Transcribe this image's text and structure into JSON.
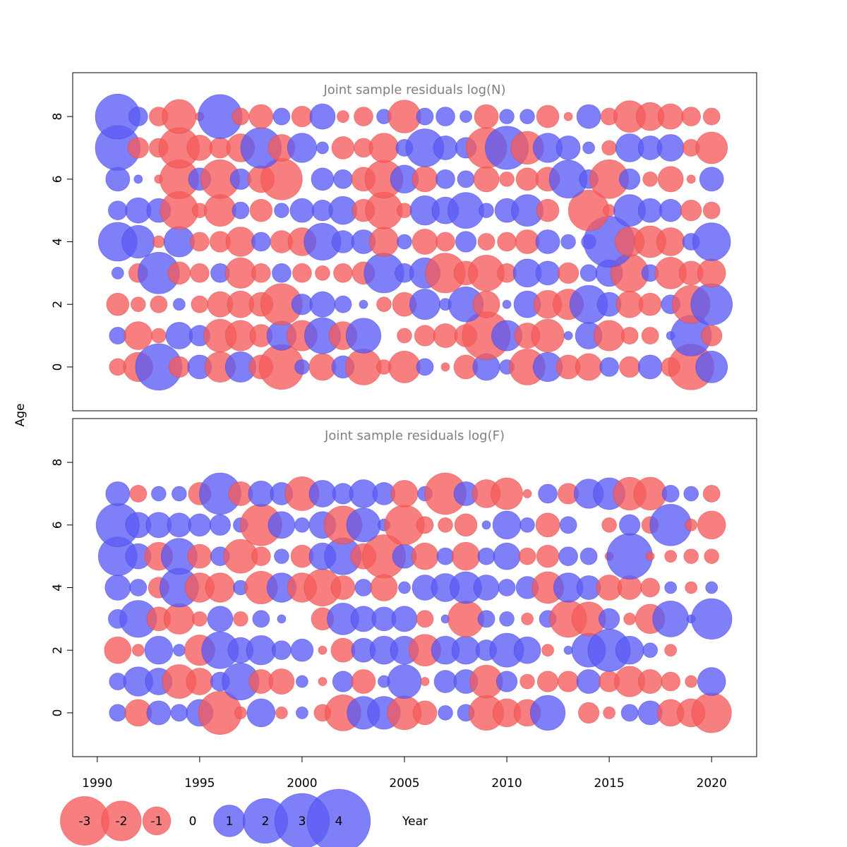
{
  "chart_data": {
    "type": "scatter",
    "subtype": "bubble",
    "xlabel": "Year",
    "ylabel": "Age",
    "xlim": [
      1988.8,
      2022.2
    ],
    "ylim": [
      -1.4,
      9.4
    ],
    "x_ticks": [
      1990,
      1995,
      2000,
      2005,
      2010,
      2015,
      2020
    ],
    "y_ticks": [
      0,
      2,
      4,
      6,
      8
    ],
    "colors": {
      "positive": "#5b5bf5",
      "negative": "#f55b5b"
    },
    "size_legend": [
      -3,
      -2,
      -1,
      0,
      1,
      2,
      3,
      4
    ],
    "years": [
      1991,
      1992,
      1993,
      1994,
      1995,
      1996,
      1997,
      1998,
      1999,
      2000,
      2001,
      2002,
      2003,
      2004,
      2005,
      2006,
      2007,
      2008,
      2009,
      2010,
      2011,
      2012,
      2013,
      2014,
      2015,
      2016,
      2017,
      2018,
      2019,
      2020
    ],
    "panels": [
      {
        "title": "Joint sample residuals log(N)",
        "ages": [
          0,
          1,
          2,
          3,
          4,
          5,
          6,
          7,
          8
        ],
        "residuals": [
          [
            -0.4,
            -1.2,
            3.0,
            -0.6,
            0.8,
            -1.3,
            1.3,
            -0.8,
            -2.8,
            0.3,
            -1.0,
            0.7,
            -1.8,
            -0.3,
            -1.4,
            0.4,
            -0.1,
            -0.8,
            1.0,
            0.3,
            -1.8,
            1.2,
            -0.8,
            -1.0,
            0.5,
            -0.6,
            0.8,
            -0.5,
            -2.9,
            1.4
          ],
          [
            0.4,
            -1.1,
            -0.3,
            1.0,
            0.6,
            -1.5,
            -1.3,
            -0.7,
            1.2,
            -1.3,
            1.8,
            -1.1,
            1.7,
            0.0,
            -0.3,
            -0.6,
            -0.8,
            -0.7,
            -3.2,
            1.3,
            -0.9,
            -1.5,
            0.1,
            1.0,
            -1.3,
            -0.4,
            -0.4,
            0.1,
            2.3,
            -0.6
          ],
          [
            -0.7,
            -0.3,
            -0.4,
            0.2,
            -0.4,
            -0.9,
            -1.0,
            -0.8,
            -2.4,
            0.6,
            0.9,
            0.4,
            0.1,
            -0.3,
            -0.8,
            1.3,
            0.2,
            1.7,
            -1.0,
            0.1,
            1.0,
            -1.1,
            -1.3,
            2.0,
            0.8,
            -1.0,
            -0.7,
            0.5,
            -2.0,
            2.4
          ],
          [
            0.2,
            -0.5,
            2.4,
            -0.7,
            -0.5,
            0.5,
            -1.3,
            -0.5,
            0.5,
            -0.5,
            -0.3,
            -0.5,
            -0.7,
            2.2,
            0.5,
            1.3,
            -2.2,
            -0.8,
            -1.8,
            -0.5,
            1.1,
            0.8,
            -0.6,
            0.4,
            1.0,
            -2.0,
            0.4,
            -1.4,
            -0.8,
            -1.1
          ],
          [
            2.1,
            1.5,
            -0.2,
            1.3,
            -0.5,
            -0.6,
            -1.2,
            0.5,
            -0.7,
            -1.1,
            1.9,
            0.7,
            0.8,
            -1.2,
            0.3,
            -0.9,
            -0.5,
            0.6,
            -0.4,
            -0.5,
            -0.8,
            0.8,
            0.3,
            0.3,
            3.6,
            -1.2,
            -1.4,
            -1.1,
            0.4,
            2.0
          ],
          [
            0.5,
            0.9,
            0.8,
            -2.0,
            -0.3,
            -1.4,
            0.4,
            -0.7,
            0.3,
            0.8,
            0.6,
            1.1,
            -0.7,
            -1.9,
            -0.3,
            1.2,
            1.0,
            1.8,
            0.3,
            0.8,
            1.4,
            -0.7,
            0.0,
            -2.3,
            -0.2,
            1.4,
            0.8,
            0.7,
            -0.6,
            -0.4
          ],
          [
            0.8,
            0.1,
            -0.1,
            -2.1,
            0.7,
            -2.1,
            0.6,
            -1.0,
            -2.4,
            0.0,
            0.7,
            0.5,
            -0.8,
            -2.0,
            1.1,
            -0.9,
            0.5,
            0.4,
            -0.9,
            -0.3,
            -0.7,
            -0.8,
            2.0,
            0.5,
            -2.1,
            0.6,
            -0.3,
            -0.9,
            -0.1,
            0.8
          ],
          [
            2.8,
            -0.6,
            -0.5,
            -2.3,
            -0.9,
            -0.6,
            -1.1,
            2.3,
            -1.0,
            1.2,
            0.2,
            -0.7,
            -0.5,
            -1.2,
            0.4,
            2.0,
            0.8,
            0.6,
            -2.3,
            2.6,
            -1.5,
            1.2,
            0.8,
            0.2,
            -0.3,
            1.1,
            0.8,
            1.0,
            -0.4,
            -1.4
          ],
          [
            2.8,
            0.5,
            -0.5,
            -1.6,
            -0.1,
            2.7,
            -0.4,
            -0.8,
            0.4,
            -0.6,
            0.9,
            -0.2,
            -0.5,
            0.3,
            -1.5,
            0.4,
            0.5,
            0.2,
            -0.8,
            0.3,
            0.3,
            -0.7,
            -0.1,
            0.8,
            -0.4,
            -1.4,
            -1.1,
            -0.9,
            -0.5,
            -0.4
          ]
        ]
      },
      {
        "title": "Joint sample residuals log(F)",
        "ages": [
          0,
          1,
          2,
          3,
          4,
          5,
          6,
          7
        ],
        "residuals": [
          [
            0.4,
            -1.0,
            0.8,
            0.4,
            1.0,
            -2.6,
            -0.2,
            1.1,
            -0.2,
            0.2,
            -0.4,
            -1.8,
            1.5,
            1.5,
            -1.6,
            -0.8,
            0.3,
            0.4,
            -1.7,
            -1.1,
            -1.0,
            1.7,
            0.0,
            -0.6,
            -0.2,
            0.4,
            0.8,
            -1.0,
            -1.1,
            -2.2
          ],
          [
            0.4,
            1.2,
            1.0,
            -1.6,
            -1.0,
            0.5,
            1.9,
            -0.8,
            -0.9,
            0.2,
            -0.1,
            0.6,
            -0.8,
            0.2,
            1.6,
            -0.1,
            0.7,
            0.8,
            -1.5,
            0.6,
            -0.3,
            -0.6,
            -0.6,
            0.8,
            -0.6,
            -1.3,
            -0.8,
            -0.5,
            -0.2,
            1.1
          ],
          [
            -1.0,
            -0.2,
            1.1,
            0.2,
            -1.3,
            1.9,
            0.9,
            1.2,
            0.5,
            0.7,
            -0.1,
            -0.8,
            0.8,
            1.1,
            1.1,
            -1.4,
            1.1,
            1.1,
            0.6,
            1.6,
            1.0,
            -0.2,
            0.1,
            1.6,
            2.5,
            1.1,
            0.3,
            -0.2,
            0.0,
            0.0
          ],
          [
            0.5,
            1.9,
            -0.8,
            -1.3,
            -0.3,
            0.9,
            -0.3,
            0.4,
            0.1,
            0.0,
            -0.7,
            1.4,
            0.9,
            0.8,
            0.9,
            -0.4,
            0.1,
            -1.8,
            0.4,
            0.3,
            -0.2,
            0.4,
            -1.9,
            -1.6,
            0.6,
            -0.2,
            -1.2,
            1.8,
            0.1,
            2.3
          ],
          [
            0.9,
            0.4,
            -0.6,
            2.1,
            -1.2,
            -1.2,
            0.3,
            -1.5,
            1.2,
            -1.2,
            -1.9,
            -0.8,
            0.4,
            -1.0,
            0.2,
            0.9,
            1.1,
            1.4,
            0.9,
            0.4,
            0.7,
            -1.4,
            1.2,
            0.8,
            -0.9,
            -0.8,
            -0.5,
            0.2,
            -0.2,
            0.2
          ],
          [
            2.1,
            0.9,
            -1.1,
            1.8,
            -0.8,
            0.5,
            -1.6,
            -0.5,
            0.3,
            -0.7,
            1.0,
            1.9,
            -0.9,
            -2.6,
            0.8,
            -1.0,
            0.4,
            -1.1,
            0.4,
            1.0,
            -0.4,
            -0.7,
            0.5,
            0.4,
            -0.1,
            2.9,
            -0.1,
            -0.2,
            -0.3,
            -0.3
          ],
          [
            2.6,
            0.9,
            0.9,
            0.8,
            0.7,
            0.6,
            0.3,
            -2.4,
            1.0,
            0.3,
            1.0,
            -2.0,
            1.6,
            0.2,
            -2.2,
            -0.4,
            -0.3,
            -0.7,
            0.1,
            1.1,
            0.3,
            -0.8,
            0.4,
            0.0,
            -0.3,
            0.6,
            -0.4,
            2.4,
            -0.2,
            -1.1
          ],
          [
            0.8,
            -0.4,
            0.3,
            0.3,
            -0.7,
            2.4,
            -0.8,
            0.9,
            0.7,
            -1.6,
            1.0,
            0.6,
            1.1,
            0.7,
            -1.0,
            0.3,
            -2.4,
            0.8,
            -1.1,
            -1.4,
            -0.1,
            0.5,
            -0.6,
            1.2,
            1.4,
            -1.5,
            -1.5,
            0.4,
            0.3,
            -0.4
          ]
        ]
      }
    ]
  }
}
